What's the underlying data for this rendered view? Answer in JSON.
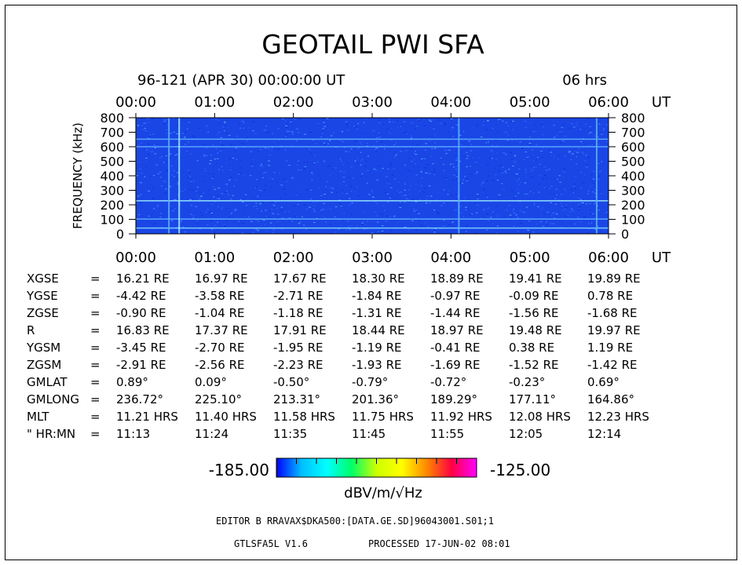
{
  "title": "GEOTAIL PWI SFA",
  "header": {
    "date_time": "96-121 (APR 30) 00:00:00 UT",
    "duration": "06 hrs"
  },
  "chart_data": {
    "type": "heatmap",
    "title": "GEOTAIL PWI SFA",
    "ylabel": "FREQUENCY (kHz)",
    "x_ticks": [
      "00:00",
      "01:00",
      "02:00",
      "03:00",
      "04:00",
      "05:00",
      "06:00"
    ],
    "x_unit": "UT",
    "xlim": [
      "00:00",
      "06:00"
    ],
    "ylim": [
      0,
      800
    ],
    "y_ticks": [
      0,
      100,
      200,
      300,
      400,
      500,
      600,
      700,
      800
    ],
    "background_color": "#1a46e6",
    "colorbar": {
      "min_label": "-185.00",
      "max_label": "-125.00",
      "units": "dBV/m/√Hz",
      "colors": [
        "#0000ff",
        "#00bfff",
        "#00ffff",
        "#00ff66",
        "#ccff00",
        "#ffff00",
        "#ff8800",
        "#ff0044",
        "#ff00ff"
      ]
    },
    "features": [
      {
        "kind": "horizontal-line",
        "y_khz": 40,
        "color": "#7fdcff"
      },
      {
        "kind": "horizontal-line",
        "y_khz": 102,
        "color": "#5fb0ff"
      },
      {
        "kind": "horizontal-line",
        "y_khz": 228,
        "color": "#9ff0ff"
      },
      {
        "kind": "horizontal-line",
        "y_khz": 600,
        "color": "#5fb0ff"
      },
      {
        "kind": "horizontal-line",
        "y_khz": 652,
        "color": "#5fb0ff"
      },
      {
        "kind": "vertical-line",
        "x_hr": 0.55,
        "color": "#9ff0ff"
      },
      {
        "kind": "vertical-line",
        "x_hr": 0.42,
        "color": "#5fb0ff"
      },
      {
        "kind": "vertical-line",
        "x_hr": 4.1,
        "color": "#5fb0ff"
      },
      {
        "kind": "vertical-line",
        "x_hr": 5.85,
        "color": "#5fb0ff"
      }
    ]
  },
  "orbit_table": {
    "rows": [
      {
        "label": "XGSE",
        "values": [
          "16.21 RE",
          "16.97 RE",
          "17.67 RE",
          "18.30 RE",
          "18.89 RE",
          "19.41 RE",
          "19.89 RE"
        ]
      },
      {
        "label": "YGSE",
        "values": [
          "-4.42 RE",
          "-3.58 RE",
          "-2.71 RE",
          "-1.84 RE",
          "-0.97 RE",
          "-0.09 RE",
          "0.78 RE"
        ]
      },
      {
        "label": "ZGSE",
        "values": [
          "-0.90 RE",
          "-1.04 RE",
          "-1.18 RE",
          "-1.31 RE",
          "-1.44 RE",
          "-1.56 RE",
          "-1.68 RE"
        ]
      },
      {
        "label": "R",
        "values": [
          "16.83 RE",
          "17.37 RE",
          "17.91 RE",
          "18.44 RE",
          "18.97 RE",
          "19.48 RE",
          "19.97 RE"
        ]
      },
      {
        "label": "YGSM",
        "values": [
          "-3.45 RE",
          "-2.70 RE",
          "-1.95 RE",
          "-1.19 RE",
          "-0.41 RE",
          "0.38 RE",
          "1.19 RE"
        ]
      },
      {
        "label": "ZGSM",
        "values": [
          "-2.91 RE",
          "-2.56 RE",
          "-2.23 RE",
          "-1.93 RE",
          "-1.69 RE",
          "-1.52 RE",
          "-1.42 RE"
        ]
      },
      {
        "label": "GMLAT",
        "values": [
          "0.89°",
          "0.09°",
          "-0.50°",
          "-0.79°",
          "-0.72°",
          "-0.23°",
          "0.69°"
        ]
      },
      {
        "label": "GMLONG",
        "values": [
          "236.72°",
          "225.10°",
          "213.31°",
          "201.36°",
          "189.29°",
          "177.11°",
          "164.86°"
        ]
      },
      {
        "label": "MLT",
        "values": [
          "11.21 HRS",
          "11.40 HRS",
          "11.58 HRS",
          "11.75 HRS",
          "11.92 HRS",
          "12.08 HRS",
          "12.23 HRS"
        ]
      },
      {
        "label": "\" HR:MN",
        "values": [
          "11:13",
          "11:24",
          "11:35",
          "11:45",
          "11:55",
          "12:05",
          "12:14"
        ]
      }
    ]
  },
  "footer": {
    "editor_line": "EDITOR B    RRAVAX$DKA500:[DATA.GE.SD]96043001.S01;1",
    "version": "GTLSFA5L V1.6",
    "processed": "PROCESSED 17-JUN-02  08:01"
  }
}
